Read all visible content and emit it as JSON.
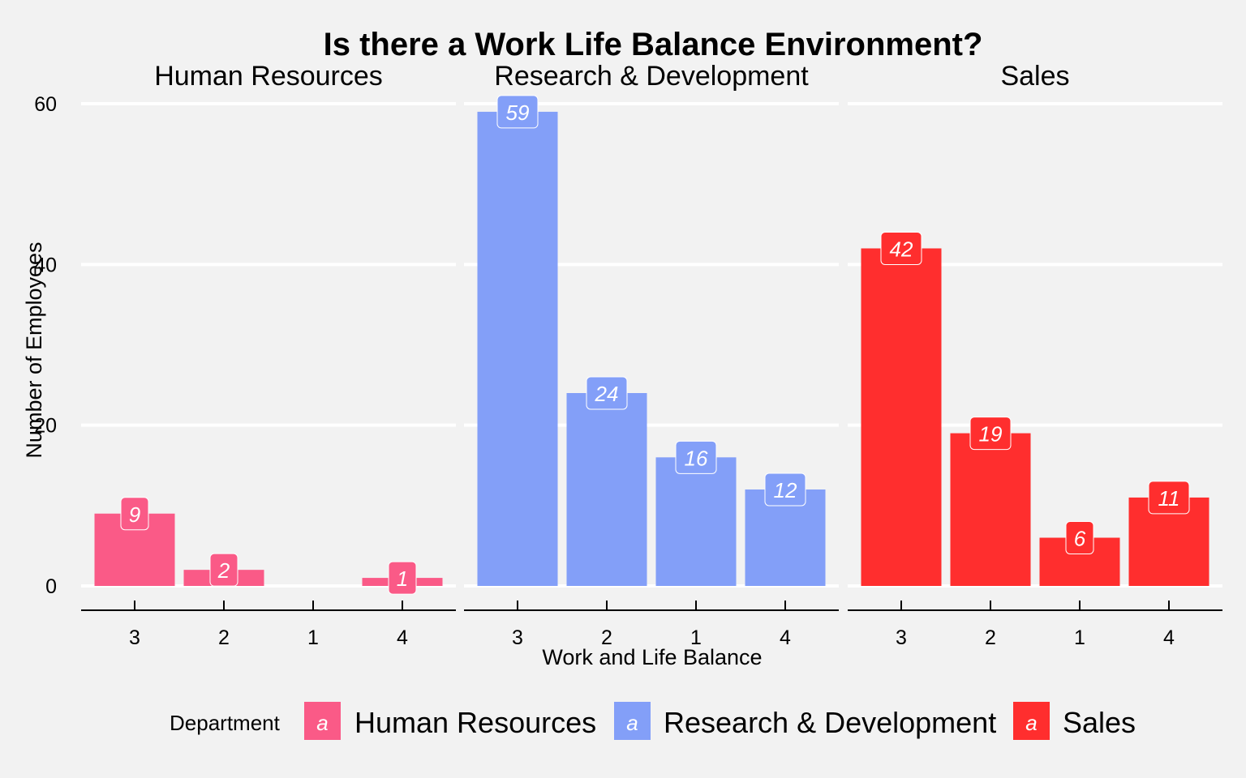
{
  "chart_data": {
    "type": "bar",
    "title": "Is there a Work Life Balance Environment?",
    "xlabel": "Work and Life Balance",
    "ylabel": "Number of Employees",
    "categories": [
      "3",
      "2",
      "1",
      "4"
    ],
    "ylim": [
      0,
      60
    ],
    "yticks": [
      "0",
      "20",
      "40",
      "60"
    ],
    "grid": "horizontal major",
    "facets": [
      {
        "name": "Human Resources",
        "color": "#fa5a87",
        "values": [
          9,
          2,
          0,
          1
        ],
        "labels": [
          "9",
          "2",
          "",
          "1"
        ]
      },
      {
        "name": "Research & Development",
        "color": "#839ff8",
        "values": [
          59,
          24,
          16,
          12
        ],
        "labels": [
          "59",
          "24",
          "16",
          "12"
        ]
      },
      {
        "name": "Sales",
        "color": "#ff2e2e",
        "values": [
          42,
          19,
          6,
          11
        ],
        "labels": [
          "42",
          "19",
          "6",
          "11"
        ]
      }
    ],
    "legend": {
      "position": "bottom",
      "title": "Department",
      "key_glyph": "a",
      "items": [
        "Human Resources",
        "Research & Development",
        "Sales"
      ]
    }
  }
}
